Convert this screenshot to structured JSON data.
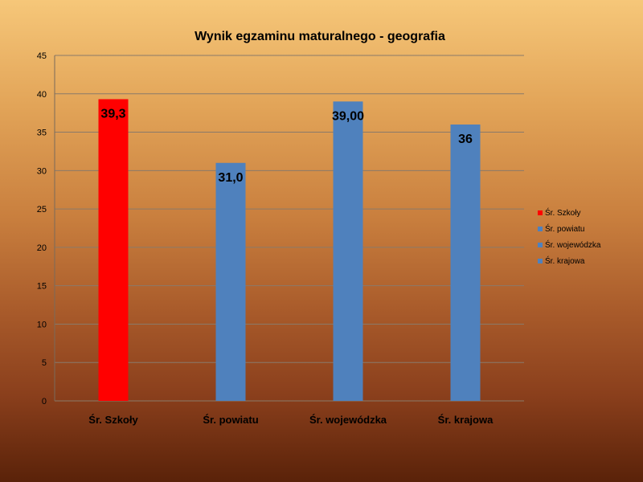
{
  "chart_data": {
    "type": "bar",
    "title": "Wynik egzaminu maturalnego - geografia",
    "categories": [
      "Śr. Szkoły",
      "Śr. powiatu",
      "Śr. wojewódzka",
      "Śr. krajowa"
    ],
    "values": [
      39.3,
      31.0,
      39.0,
      36
    ],
    "data_labels": [
      "39,3",
      "31,0",
      "39,00",
      "36"
    ],
    "colors": [
      "#ff0000",
      "#4f81bd",
      "#4f81bd",
      "#4f81bd"
    ],
    "ylim": [
      0,
      45
    ],
    "yticks": [
      0,
      5,
      10,
      15,
      20,
      25,
      30,
      35,
      40,
      45
    ],
    "grid": true,
    "legend_position": "right",
    "legend": [
      {
        "label": "Śr. Szkoły",
        "color": "#ff0000"
      },
      {
        "label": "Śr. powiatu",
        "color": "#4f81bd"
      },
      {
        "label": "Śr. wojewódzka",
        "color": "#4f81bd"
      },
      {
        "label": "Śr. krajowa",
        "color": "#4f81bd"
      }
    ],
    "xlabel": "",
    "ylabel": ""
  }
}
